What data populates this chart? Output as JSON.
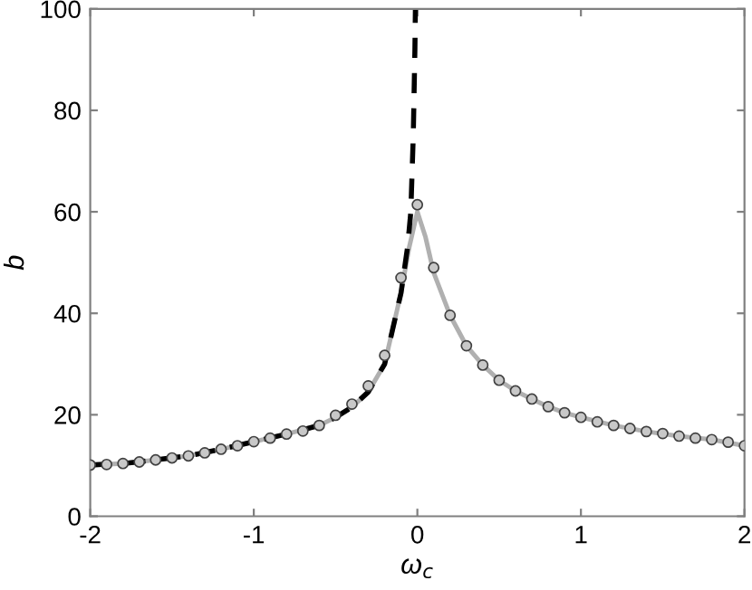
{
  "chart_data": {
    "type": "line",
    "xlabel": "ω$_{c}$",
    "ylabel": "b",
    "xlim": [
      -2,
      2
    ],
    "ylim": [
      0,
      100
    ],
    "xticks": [
      -2,
      -1,
      0,
      1,
      2
    ],
    "yticks": [
      0,
      20,
      40,
      60,
      80,
      100
    ],
    "grid": false,
    "legend": false,
    "series": [
      {
        "color": "#b0b0b0",
        "line_style": "solid",
        "marker": "none",
        "x": [
          -2,
          -1.8,
          -1.6,
          -1.4,
          -1.2,
          -1.0,
          -0.8,
          -0.6,
          -0.5,
          -0.4,
          -0.3,
          -0.2,
          -0.1,
          -0.05,
          0,
          0.05,
          0.1,
          0.2,
          0.3,
          0.4,
          0.5,
          0.6,
          0.7,
          0.8,
          0.9,
          1.0,
          1.2,
          1.4,
          1.6,
          1.8,
          2.0
        ],
        "values": [
          10.1,
          10.4,
          11.1,
          11.9,
          13.2,
          14.7,
          16.2,
          17.9,
          19.5,
          21.5,
          24.5,
          30,
          44,
          53,
          60,
          55,
          48,
          39.6,
          33.6,
          29.8,
          26.8,
          24.7,
          23.1,
          21.6,
          20.4,
          19.5,
          17.9,
          16.7,
          15.8,
          15.1,
          13.9
        ]
      },
      {
        "color": "#000000",
        "line_style": "dashed",
        "marker": "none",
        "x": [
          -2,
          -1.8,
          -1.6,
          -1.4,
          -1.2,
          -1.0,
          -0.8,
          -0.6,
          -0.5,
          -0.4,
          -0.3,
          -0.2,
          -0.1,
          -0.06,
          -0.04,
          -0.025,
          -0.015,
          -0.012
        ],
        "values": [
          10.1,
          10.4,
          11.1,
          11.9,
          13.2,
          14.7,
          16.2,
          17.9,
          19.5,
          21.5,
          24.5,
          30,
          44,
          53,
          60,
          75,
          92,
          100
        ]
      },
      {
        "type": "scatter",
        "color": "#404040",
        "marker": "circle",
        "x": [
          -2,
          -1.9,
          -1.8,
          -1.7,
          -1.6,
          -1.5,
          -1.4,
          -1.3,
          -1.2,
          -1.1,
          -1.0,
          -0.9,
          -0.8,
          -0.7,
          -0.6,
          -0.5,
          -0.4,
          -0.3,
          -0.2,
          -0.1,
          0,
          0.1,
          0.2,
          0.3,
          0.4,
          0.5,
          0.6,
          0.7,
          0.8,
          0.9,
          1.0,
          1.1,
          1.2,
          1.3,
          1.4,
          1.5,
          1.6,
          1.7,
          1.8,
          1.9,
          2.0
        ],
        "values": [
          10.1,
          10.2,
          10.4,
          10.7,
          11.1,
          11.5,
          11.9,
          12.5,
          13.2,
          13.9,
          14.7,
          15.4,
          16.2,
          16.8,
          17.9,
          19.9,
          22.1,
          25.7,
          31.7,
          47,
          61.4,
          49,
          39.6,
          33.6,
          29.8,
          26.8,
          24.7,
          23.1,
          21.6,
          20.4,
          19.5,
          18.6,
          17.9,
          17.3,
          16.7,
          16.3,
          15.8,
          15.4,
          15.1,
          14.6,
          13.9
        ]
      }
    ]
  }
}
